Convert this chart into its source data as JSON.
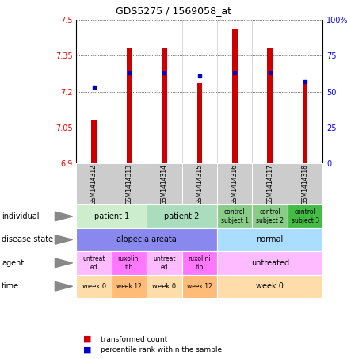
{
  "title": "GDS5275 / 1569058_at",
  "samples": [
    "GSM1414312",
    "GSM1414313",
    "GSM1414314",
    "GSM1414315",
    "GSM1414316",
    "GSM1414317",
    "GSM1414318"
  ],
  "bar_values": [
    7.08,
    7.38,
    7.385,
    7.235,
    7.46,
    7.38,
    7.23
  ],
  "percentile_values": [
    53,
    63,
    63,
    61,
    63,
    63,
    57
  ],
  "ylim_left": [
    6.9,
    7.5
  ],
  "ylim_right": [
    0,
    100
  ],
  "yticks_left": [
    6.9,
    7.05,
    7.2,
    7.35,
    7.5
  ],
  "yticks_right": [
    0,
    25,
    50,
    75,
    100
  ],
  "ytick_labels_right": [
    "0",
    "25",
    "50",
    "75",
    "100%"
  ],
  "bar_color": "#cc0000",
  "dot_color": "#0000cc",
  "bar_bottom": 6.9,
  "bar_width": 0.15,
  "rows": [
    {
      "label": "individual",
      "cells": [
        {
          "text": "patient 1",
          "span": 2,
          "color": "#cceecc",
          "fontsize": 7
        },
        {
          "text": "patient 2",
          "span": 2,
          "color": "#aaddbb",
          "fontsize": 7
        },
        {
          "text": "control\nsubject 1",
          "span": 1,
          "color": "#88cc88",
          "fontsize": 5.5
        },
        {
          "text": "control\nsubject 2",
          "span": 1,
          "color": "#88cc88",
          "fontsize": 5.5
        },
        {
          "text": "control\nsubject 3",
          "span": 1,
          "color": "#44bb44",
          "fontsize": 5.5
        }
      ]
    },
    {
      "label": "disease state",
      "cells": [
        {
          "text": "alopecia areata",
          "span": 4,
          "color": "#8888ee",
          "fontsize": 7
        },
        {
          "text": "normal",
          "span": 3,
          "color": "#aaddff",
          "fontsize": 7
        }
      ]
    },
    {
      "label": "agent",
      "cells": [
        {
          "text": "untreat\ned",
          "span": 1,
          "color": "#ffbbff",
          "fontsize": 5.5
        },
        {
          "text": "ruxolini\ntib",
          "span": 1,
          "color": "#ff77ff",
          "fontsize": 5.5
        },
        {
          "text": "untreat\ned",
          "span": 1,
          "color": "#ffbbff",
          "fontsize": 5.5
        },
        {
          "text": "ruxolini\ntib",
          "span": 1,
          "color": "#ff77ff",
          "fontsize": 5.5
        },
        {
          "text": "untreated",
          "span": 3,
          "color": "#ffbbff",
          "fontsize": 7
        }
      ]
    },
    {
      "label": "time",
      "cells": [
        {
          "text": "week 0",
          "span": 1,
          "color": "#ffddaa",
          "fontsize": 6
        },
        {
          "text": "week 12",
          "span": 1,
          "color": "#ffbb77",
          "fontsize": 5.5
        },
        {
          "text": "week 0",
          "span": 1,
          "color": "#ffddaa",
          "fontsize": 6
        },
        {
          "text": "week 12",
          "span": 1,
          "color": "#ffbb77",
          "fontsize": 5.5
        },
        {
          "text": "week 0",
          "span": 3,
          "color": "#ffddaa",
          "fontsize": 7
        }
      ]
    }
  ]
}
